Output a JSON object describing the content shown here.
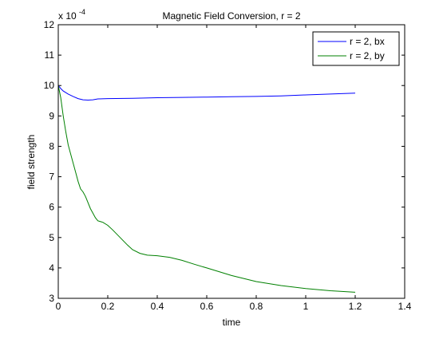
{
  "chart_data": {
    "type": "line",
    "title": "Magnetic Field Conversion, r = 2",
    "xlabel": "time",
    "ylabel": "field strength",
    "y_multiplier_base": "x 10",
    "y_multiplier_exp": "-4",
    "xlim": [
      0,
      1.4
    ],
    "ylim": [
      3,
      12
    ],
    "x_ticks": [
      0,
      0.2,
      0.4,
      0.6,
      0.8,
      1,
      1.2,
      1.4
    ],
    "x_tick_labels": [
      "0",
      "0.2",
      "0.4",
      "0.6",
      "0.8",
      "1",
      "1.2",
      "1.4"
    ],
    "y_ticks": [
      3,
      4,
      5,
      6,
      7,
      8,
      9,
      10,
      11,
      12
    ],
    "y_tick_labels": [
      "3",
      "4",
      "5",
      "6",
      "7",
      "8",
      "9",
      "10",
      "11",
      "12"
    ],
    "grid": false,
    "legend_position": "top-right",
    "series": [
      {
        "name": "r = 2, bx",
        "color": "#0000ff",
        "x": [
          0,
          0.01,
          0.02,
          0.04,
          0.06,
          0.08,
          0.1,
          0.12,
          0.14,
          0.16,
          0.2,
          0.3,
          0.4,
          0.5,
          0.6,
          0.7,
          0.8,
          0.9,
          1.0,
          1.1,
          1.2
        ],
        "y": [
          10.0,
          9.9,
          9.82,
          9.72,
          9.64,
          9.57,
          9.53,
          9.52,
          9.53,
          9.56,
          9.57,
          9.58,
          9.6,
          9.61,
          9.62,
          9.63,
          9.64,
          9.66,
          9.69,
          9.72,
          9.75
        ]
      },
      {
        "name": "r = 2, by",
        "color": "#008000",
        "x": [
          0,
          0.01,
          0.02,
          0.03,
          0.04,
          0.05,
          0.06,
          0.07,
          0.08,
          0.09,
          0.1,
          0.11,
          0.12,
          0.13,
          0.14,
          0.15,
          0.16,
          0.18,
          0.2,
          0.22,
          0.25,
          0.28,
          0.3,
          0.33,
          0.36,
          0.4,
          0.45,
          0.5,
          0.55,
          0.6,
          0.7,
          0.8,
          0.9,
          1.0,
          1.1,
          1.2
        ],
        "y": [
          10.0,
          9.6,
          9.0,
          8.5,
          8.05,
          7.75,
          7.45,
          7.15,
          6.85,
          6.6,
          6.5,
          6.35,
          6.15,
          5.95,
          5.8,
          5.65,
          5.55,
          5.5,
          5.4,
          5.25,
          5.0,
          4.75,
          4.6,
          4.48,
          4.42,
          4.4,
          4.35,
          4.25,
          4.12,
          4.0,
          3.75,
          3.55,
          3.42,
          3.32,
          3.25,
          3.2
        ]
      }
    ]
  }
}
